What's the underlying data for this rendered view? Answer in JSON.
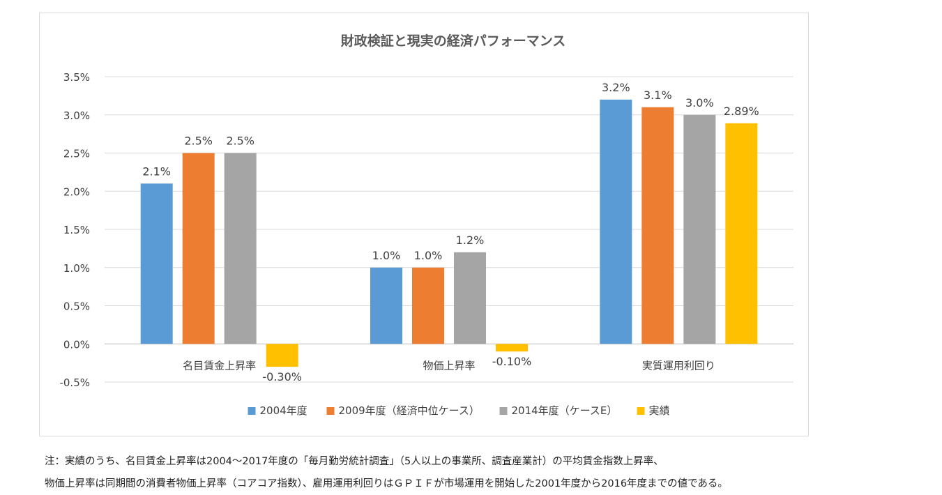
{
  "chart_data": {
    "type": "bar",
    "title": "財政検証と現実の経済パフォーマンス",
    "xlabel": "",
    "ylabel": "",
    "categories": [
      "名目賃金上昇率",
      "物価上昇率",
      "実質運用利回り"
    ],
    "series": [
      {
        "name": "2004年度",
        "color": "#5b9bd5",
        "values": [
          2.1,
          1.0,
          3.2
        ],
        "labels": [
          "2.1%",
          "1.0%",
          "3.2%"
        ]
      },
      {
        "name": "2009年度（経済中位ケース）",
        "color": "#ed7d31",
        "values": [
          2.5,
          1.0,
          3.1
        ],
        "labels": [
          "2.5%",
          "1.0%",
          "3.1%"
        ]
      },
      {
        "name": "2014年度（ケースE）",
        "color": "#a5a5a5",
        "values": [
          2.5,
          1.2,
          3.0
        ],
        "labels": [
          "2.5%",
          "1.2%",
          "3.0%"
        ]
      },
      {
        "name": "実績",
        "color": "#ffc000",
        "values": [
          -0.3,
          -0.1,
          2.89
        ],
        "labels": [
          "-0.30%",
          "-0.10%",
          "2.89%"
        ]
      }
    ],
    "ylim": [
      -0.5,
      3.5
    ],
    "yticks": [
      3.5,
      3.0,
      2.5,
      2.0,
      1.5,
      1.0,
      0.5,
      0.0,
      -0.5
    ],
    "ytick_labels": [
      "3.5%",
      "3.0%",
      "2.5%",
      "2.0%",
      "1.5%",
      "1.0%",
      "0.5%",
      "0.0%",
      "-0.5%"
    ],
    "grid": true,
    "legend_position": "bottom"
  },
  "notes": {
    "line1": "注：実績のうち、名目賃金上昇率は2004～2017年度の「毎月勤労統計調査」（5人以上の事業所、調査産業計）の平均賃金指数上昇率、",
    "line2": "物価上昇率は同期間の消費者物価上昇率（コアコア指数）、雇用運用利回りはＧＰＩＦが市場運用を開始した2001年度から2016年度までの値である。"
  }
}
